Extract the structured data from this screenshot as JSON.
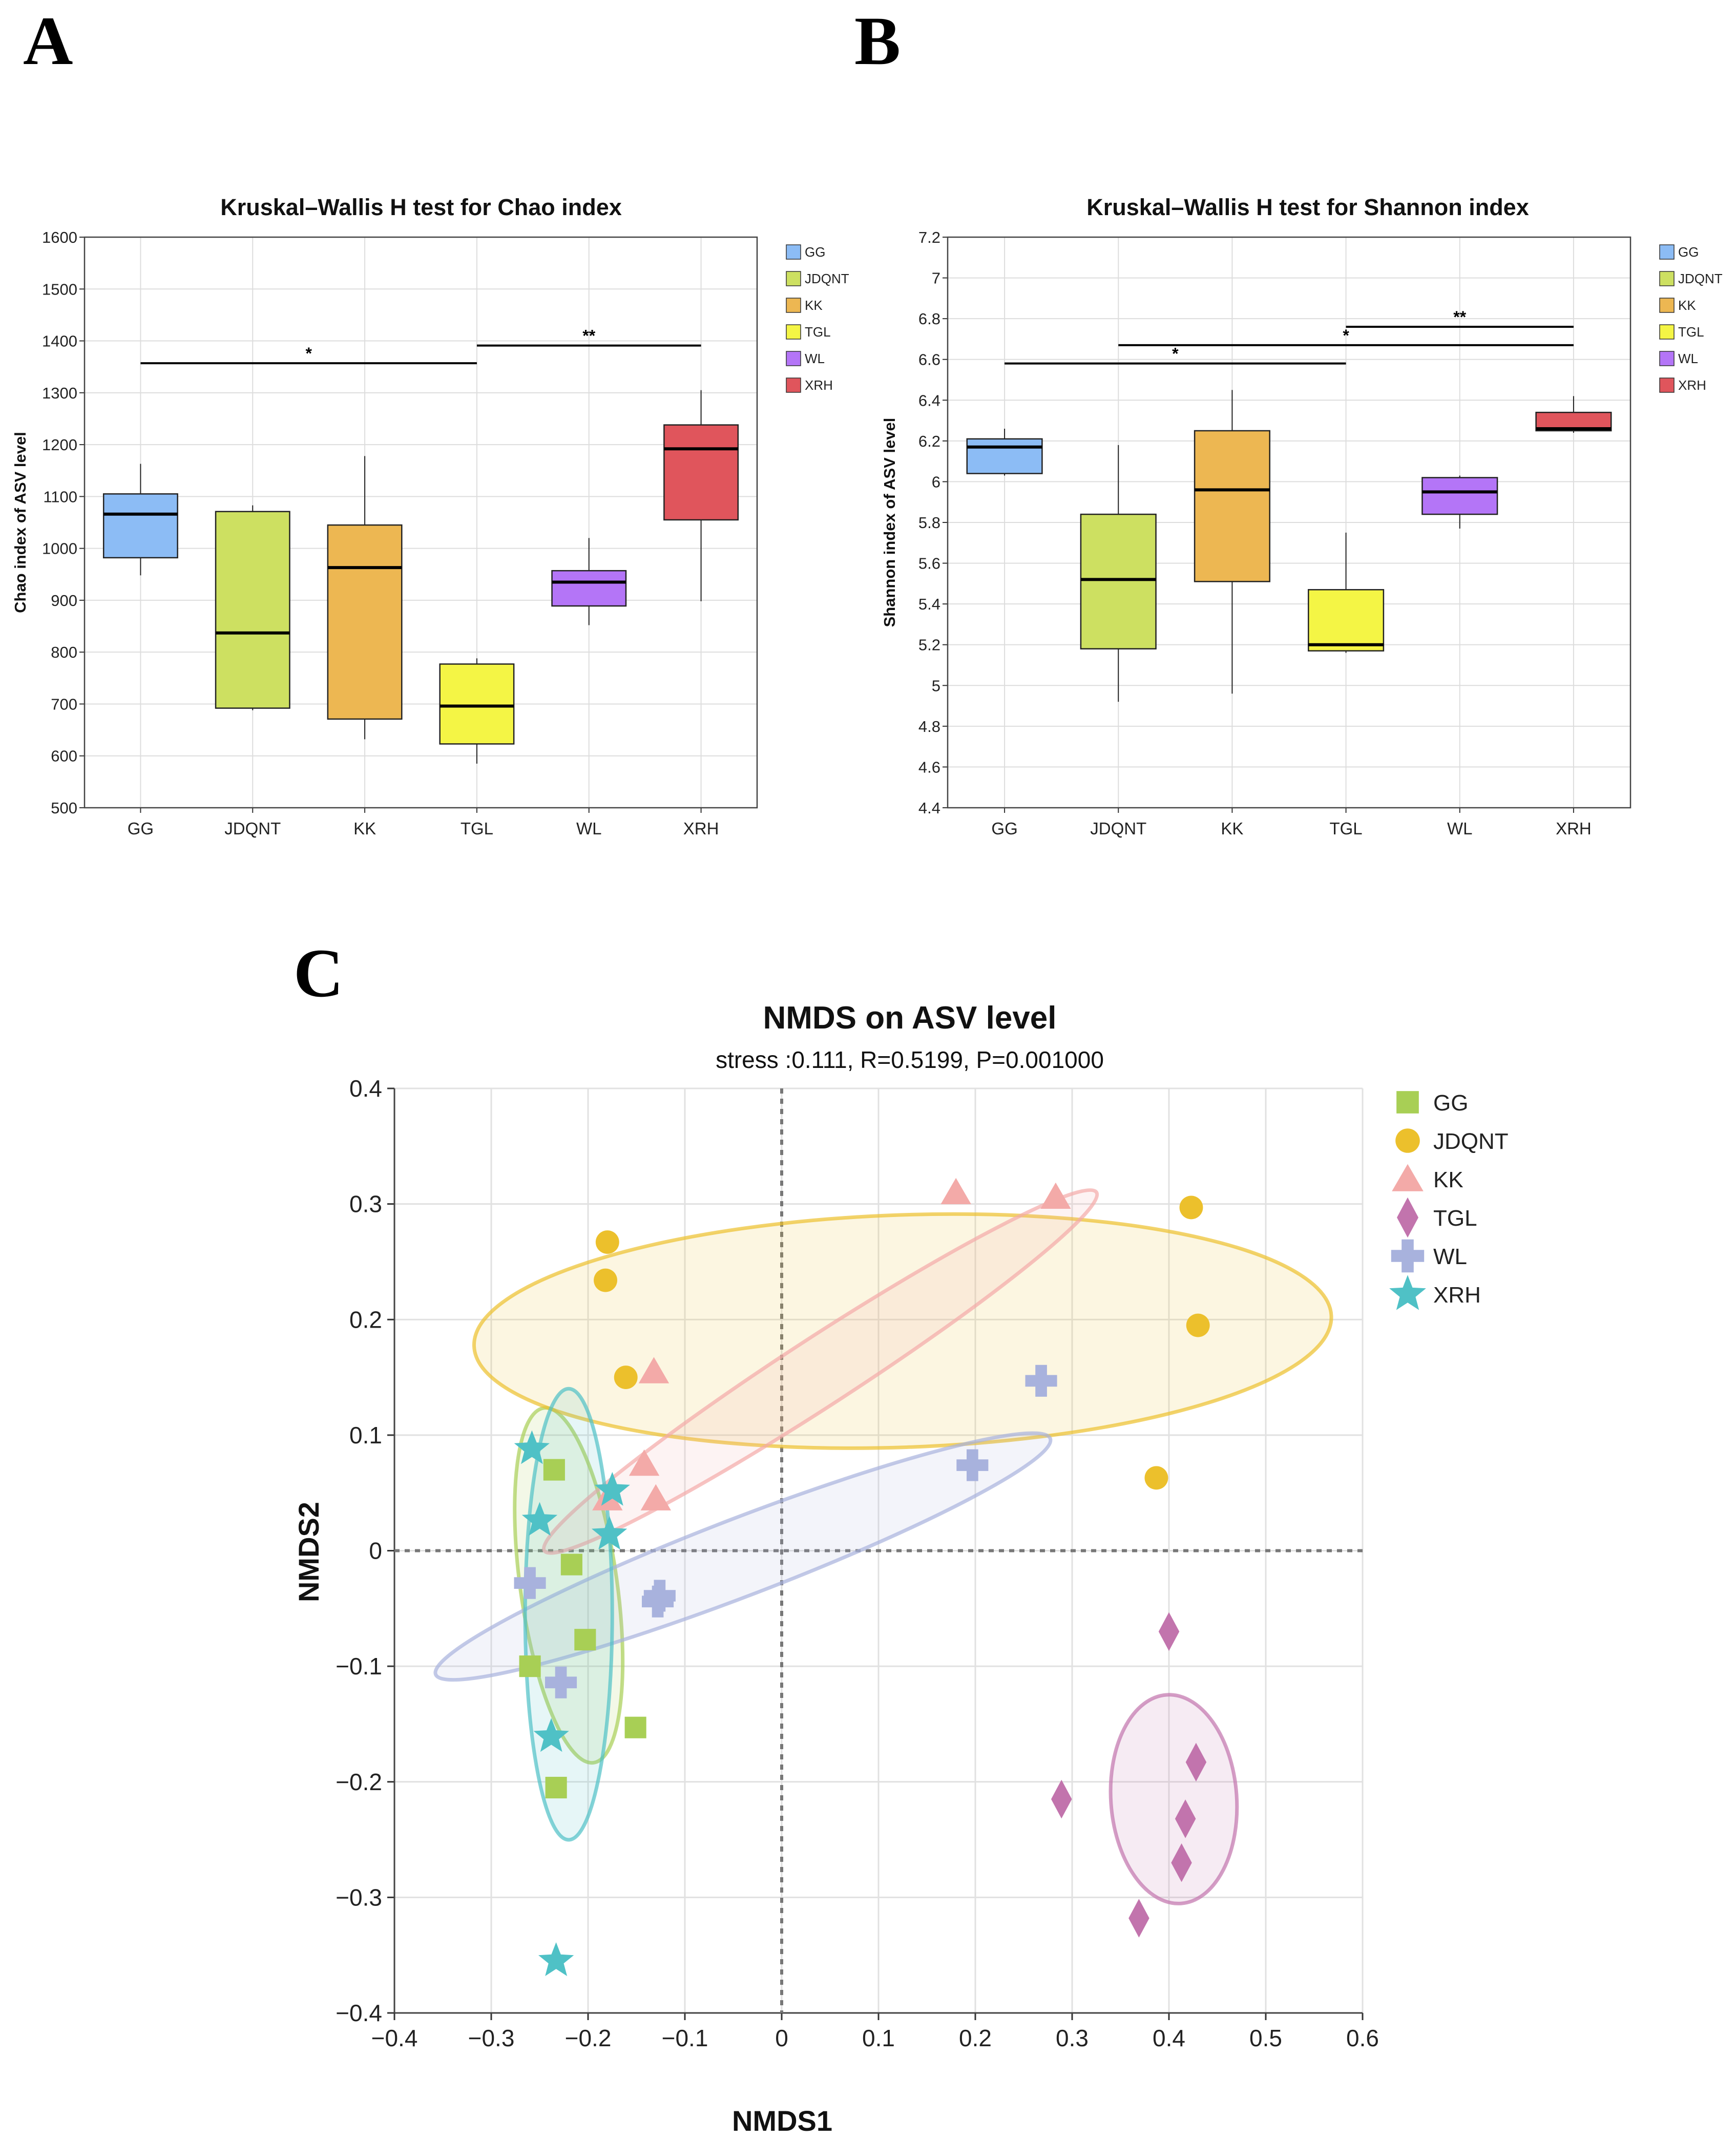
{
  "colors": {
    "GG": "#8cbcf5",
    "JDQNT": "#cde061",
    "KK": "#edb752",
    "TGL": "#f4f545",
    "WL": "#b475f7",
    "XRH": "#e0555c",
    "nmds_GG": "#a8cf55",
    "nmds_JDQNT": "#ecc02c",
    "nmds_KK": "#f3aaa8",
    "nmds_TGL": "#c274ad",
    "nmds_WL": "#a8b2dd",
    "nmds_XRH": "#4fc1c6"
  },
  "chart_data": [
    {
      "panel_label": "A",
      "type": "box",
      "title": "Kruskal–Wallis H test for Chao index",
      "xlabel": "",
      "ylabel": "Chao index of ASV level",
      "categories": [
        "GG",
        "JDQNT",
        "KK",
        "TGL",
        "WL",
        "XRH"
      ],
      "ylim": [
        500,
        1600
      ],
      "yticks": [
        "500",
        "600",
        "700",
        "800",
        "900",
        "1000",
        "1100",
        "1200",
        "1300",
        "1400",
        "1500",
        "1600"
      ],
      "legend": [
        "GG",
        "JDQNT",
        "KK",
        "TGL",
        "WL",
        "XRH"
      ],
      "legend_position": "right",
      "boxes": [
        {
          "group": "GG",
          "min": 948,
          "q1": 982,
          "median": 1066,
          "q3": 1105,
          "max": 1163
        },
        {
          "group": "JDQNT",
          "min": 688,
          "q1": 692,
          "median": 837,
          "q3": 1071,
          "max": 1083
        },
        {
          "group": "KK",
          "min": 632,
          "q1": 671,
          "median": 963,
          "q3": 1045,
          "max": 1178
        },
        {
          "group": "TGL",
          "min": 585,
          "q1": 623,
          "median": 696,
          "q3": 777,
          "max": 788
        },
        {
          "group": "WL",
          "min": 852,
          "q1": 889,
          "median": 935,
          "q3": 957,
          "max": 1020
        },
        {
          "group": "XRH",
          "min": 898,
          "q1": 1055,
          "median": 1192,
          "q3": 1238,
          "max": 1305
        }
      ],
      "significance": [
        {
          "from": "GG",
          "to": "TGL",
          "level": 1357,
          "label": "*"
        },
        {
          "from": "TGL",
          "to": "XRH",
          "level": 1391,
          "label": "**"
        }
      ]
    },
    {
      "panel_label": "B",
      "type": "box",
      "title": "Kruskal–Wallis H test for Shannon index",
      "xlabel": "",
      "ylabel": "Shannon index of ASV level",
      "categories": [
        "GG",
        "JDQNT",
        "KK",
        "TGL",
        "WL",
        "XRH"
      ],
      "ylim": [
        4.4,
        7.2
      ],
      "yticks": [
        "4.4",
        "4.6",
        "4.8",
        "5",
        "5.2",
        "5.4",
        "5.6",
        "5.8",
        "6",
        "6.2",
        "6.4",
        "6.6",
        "6.8",
        "7",
        "7.2"
      ],
      "legend": [
        "GG",
        "JDQNT",
        "KK",
        "TGL",
        "WL",
        "XRH"
      ],
      "legend_position": "right",
      "boxes": [
        {
          "group": "GG",
          "min": 6.03,
          "q1": 6.04,
          "median": 6.17,
          "q3": 6.21,
          "max": 6.26
        },
        {
          "group": "JDQNT",
          "min": 4.92,
          "q1": 5.18,
          "median": 5.52,
          "q3": 5.84,
          "max": 6.18
        },
        {
          "group": "KK",
          "min": 4.96,
          "q1": 5.51,
          "median": 5.96,
          "q3": 6.25,
          "max": 6.45
        },
        {
          "group": "TGL",
          "min": 5.16,
          "q1": 5.17,
          "median": 5.2,
          "q3": 5.47,
          "max": 5.75
        },
        {
          "group": "WL",
          "min": 5.77,
          "q1": 5.84,
          "median": 5.95,
          "q3": 6.02,
          "max": 6.03
        },
        {
          "group": "XRH",
          "min": 6.24,
          "q1": 6.25,
          "median": 6.26,
          "q3": 6.34,
          "max": 6.42
        }
      ],
      "significance": [
        {
          "from": "GG",
          "to": "TGL",
          "level": 6.58,
          "label": "*"
        },
        {
          "from": "JDQNT",
          "to": "XRH",
          "level": 6.67,
          "label": "*"
        },
        {
          "from": "TGL",
          "to": "XRH",
          "level": 6.76,
          "label": "**"
        }
      ]
    },
    {
      "panel_label": "C",
      "type": "scatter",
      "title": "NMDS on ASV level",
      "subtitle": "stress :0.111, R=0.5199, P=0.001000",
      "xlabel": "NMDS1",
      "ylabel": "NMDS2",
      "xlim": [
        -0.4,
        0.6
      ],
      "ylim": [
        -0.4,
        0.4
      ],
      "xticks": [
        "−0.4",
        "−0.3",
        "−0.2",
        "−0.1",
        "0",
        "0.1",
        "0.2",
        "0.3",
        "0.4",
        "0.5",
        "0.6"
      ],
      "yticks": [
        "−0.4",
        "−0.3",
        "−0.2",
        "−0.1",
        "0",
        "0.1",
        "0.2",
        "0.3",
        "0.4"
      ],
      "legend_position": "top-right",
      "series": [
        {
          "name": "GG",
          "marker": "square",
          "x": [
            -0.235,
            -0.217,
            -0.203,
            -0.26,
            -0.151,
            -0.233
          ],
          "y": [
            0.07,
            -0.012,
            -0.077,
            -0.1,
            -0.153,
            -0.205
          ],
          "ellipse": {
            "cx": -0.22,
            "cy": -0.03,
            "rx": 0.185,
            "ry": 0.05,
            "angle_deg": 82
          }
        },
        {
          "name": "JDQNT",
          "marker": "circle",
          "x": [
            -0.18,
            -0.182,
            -0.161,
            0.423,
            0.43,
            0.387
          ],
          "y": [
            0.267,
            0.234,
            0.15,
            0.297,
            0.195,
            0.063
          ],
          "ellipse": {
            "cx": 0.125,
            "cy": 0.19,
            "rx": 0.443,
            "ry": 0.12,
            "angle_deg": -2
          }
        },
        {
          "name": "KK",
          "marker": "triangle",
          "x": [
            0.18,
            0.283,
            -0.132,
            -0.142,
            -0.13,
            -0.18
          ],
          "y": [
            0.31,
            0.306,
            0.155,
            0.075,
            0.045,
            0.045
          ],
          "ellipse": {
            "cx": 0.04,
            "cy": 0.155,
            "rx": 0.34,
            "ry": 0.035,
            "angle_deg": -33
          }
        },
        {
          "name": "TGL",
          "marker": "diamond",
          "x": [
            0.4,
            0.428,
            0.417,
            0.413,
            0.369,
            0.289
          ],
          "y": [
            -0.07,
            -0.183,
            -0.232,
            -0.27,
            -0.318,
            -0.215
          ],
          "ellipse": {
            "cx": 0.405,
            "cy": -0.215,
            "rx": 0.108,
            "ry": 0.065,
            "angle_deg": 86
          }
        },
        {
          "name": "WL",
          "marker": "cross",
          "x": [
            0.268,
            0.197,
            -0.126,
            -0.26,
            -0.228,
            -0.128
          ],
          "y": [
            0.147,
            0.074,
            -0.039,
            -0.028,
            -0.114,
            -0.044
          ],
          "ellipse": {
            "cx": -0.04,
            "cy": -0.005,
            "rx": 0.34,
            "ry": 0.04,
            "angle_deg": -21
          }
        },
        {
          "name": "XRH",
          "marker": "star",
          "x": [
            -0.258,
            -0.25,
            -0.175,
            -0.178,
            -0.238,
            -0.233
          ],
          "y": [
            0.088,
            0.026,
            0.052,
            0.014,
            -0.161,
            -0.355
          ],
          "ellipse": {
            "cx": -0.22,
            "cy": -0.055,
            "rx": 0.233,
            "ry": 0.045,
            "angle_deg": 90
          }
        }
      ]
    }
  ]
}
